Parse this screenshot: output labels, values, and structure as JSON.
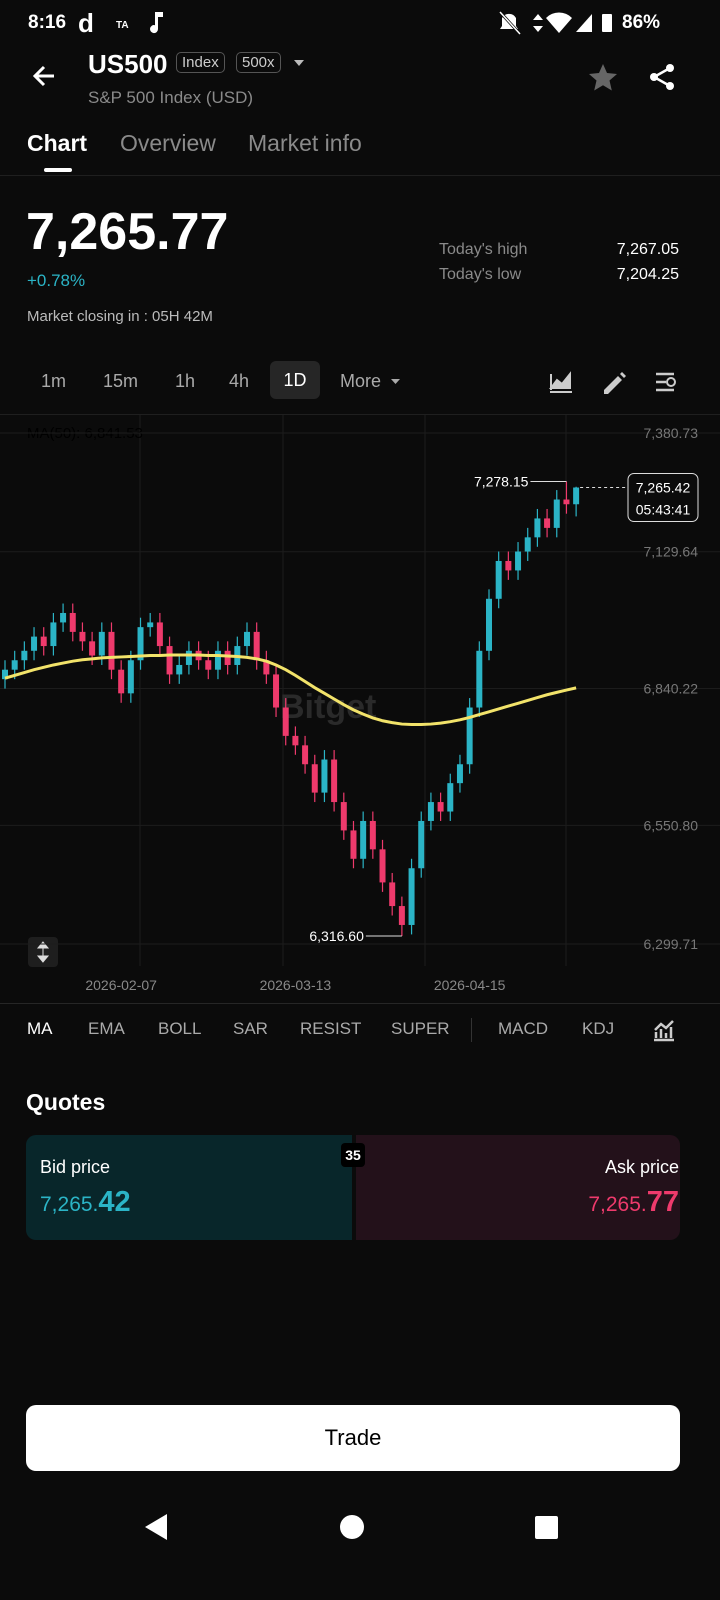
{
  "status": {
    "time": "8:16",
    "icon_d": "d",
    "icon_ta": "TA",
    "battery": "86%"
  },
  "header": {
    "symbol": "US500",
    "badges": [
      "Index",
      "500x"
    ],
    "subtitle": "S&P 500 Index (USD)"
  },
  "tabs": [
    "Chart",
    "Overview",
    "Market info"
  ],
  "price": {
    "last": "7,265.77",
    "change": "+0.78%",
    "closing": "Market closing in : 05H 42M",
    "stats": [
      {
        "label": "Today's high",
        "value": "7,267.05"
      },
      {
        "label": "Today's low",
        "value": "7,204.25"
      }
    ]
  },
  "intervals": [
    "1m",
    "15m",
    "1h",
    "4h",
    "1D",
    "More"
  ],
  "chart_data": {
    "type": "candlestick",
    "watermark": "Bitget",
    "ma_label": "MA(50): 6,841.53",
    "ma_color": "#f2e36a",
    "up_color": "#2bb4c6",
    "down_color": "#ee3a6c",
    "max_label": "7,278.15",
    "min_label": "6,316.60",
    "last_label": "7,265.42",
    "countdown": "05:43:41",
    "categories": [
      null,
      null,
      null,
      null,
      null,
      null,
      null,
      null,
      null,
      null,
      null,
      null,
      "2026-02-07",
      null,
      null,
      null,
      null,
      null,
      null,
      null,
      null,
      null,
      null,
      null,
      null,
      null,
      null,
      null,
      null,
      null,
      "2026-03-13",
      null,
      null,
      null,
      null,
      null,
      null,
      null,
      null,
      null,
      null,
      null,
      null,
      null,
      null,
      null,
      null,
      null,
      "2026-04-15",
      null,
      null,
      null,
      null,
      null,
      null,
      null,
      null,
      null,
      null,
      null
    ],
    "open": [
      6860,
      6880,
      6900,
      6920,
      6950,
      6930,
      6980,
      7000,
      6960,
      6940,
      6910,
      6960,
      6880,
      6830,
      6900,
      6970,
      6980,
      6930,
      6870,
      6890,
      6920,
      6900,
      6880,
      6920,
      6890,
      6930,
      6960,
      6900,
      6870,
      6800,
      6740,
      6720,
      6680,
      6620,
      6690,
      6600,
      6540,
      6480,
      6560,
      6500,
      6430,
      6380,
      6340,
      6460,
      6560,
      6600,
      6580,
      6640,
      6680,
      6800,
      6920,
      7030,
      7110,
      7090,
      7130,
      7160,
      7200,
      7180,
      7240,
      7230
    ],
    "high": [
      6900,
      6920,
      6940,
      6970,
      6970,
      7000,
      7020,
      7020,
      6980,
      6960,
      6980,
      6980,
      6900,
      6920,
      6990,
      7000,
      7000,
      6950,
      6910,
      6940,
      6940,
      6920,
      6940,
      6940,
      6950,
      6980,
      6980,
      6920,
      6890,
      6820,
      6760,
      6740,
      6700,
      6710,
      6710,
      6620,
      6560,
      6580,
      6580,
      6520,
      6450,
      6400,
      6480,
      6580,
      6620,
      6620,
      6660,
      6700,
      6820,
      6940,
      7050,
      7130,
      7130,
      7150,
      7180,
      7220,
      7220,
      7260,
      7278.15,
      7267.05
    ],
    "low": [
      6840,
      6860,
      6880,
      6900,
      6910,
      6910,
      6960,
      6940,
      6920,
      6890,
      6890,
      6860,
      6810,
      6810,
      6880,
      6950,
      6910,
      6850,
      6850,
      6870,
      6880,
      6860,
      6860,
      6870,
      6870,
      6910,
      6880,
      6850,
      6780,
      6720,
      6700,
      6660,
      6600,
      6600,
      6580,
      6520,
      6460,
      6460,
      6480,
      6410,
      6360,
      6316.6,
      6320,
      6440,
      6540,
      6560,
      6560,
      6620,
      6660,
      6780,
      6900,
      7010,
      7070,
      7070,
      7110,
      7140,
      7160,
      7160,
      7210,
      7204.25
    ],
    "close": [
      6880,
      6900,
      6920,
      6950,
      6930,
      6980,
      7000,
      6960,
      6940,
      6910,
      6960,
      6880,
      6830,
      6900,
      6970,
      6980,
      6930,
      6870,
      6890,
      6920,
      6900,
      6880,
      6920,
      6890,
      6930,
      6960,
      6900,
      6870,
      6800,
      6740,
      6720,
      6680,
      6620,
      6690,
      6600,
      6540,
      6480,
      6560,
      6500,
      6430,
      6380,
      6340,
      6460,
      6560,
      6600,
      6580,
      6640,
      6680,
      6800,
      6920,
      7030,
      7110,
      7090,
      7130,
      7160,
      7200,
      7180,
      7240,
      7230,
      7265.42
    ],
    "ma_values": [
      6862,
      6868,
      6874,
      6880,
      6885,
      6890,
      6894,
      6898,
      6901,
      6903,
      6905,
      6906,
      6907,
      6908,
      6909,
      6910,
      6910,
      6911,
      6911,
      6911,
      6911,
      6910,
      6910,
      6909,
      6908,
      6906,
      6903,
      6898,
      6890,
      6880,
      6868,
      6855,
      6842,
      6830,
      6818,
      6806,
      6795,
      6786,
      6778,
      6772,
      6768,
      6765,
      6764,
      6764,
      6765,
      6767,
      6770,
      6774,
      6779,
      6785,
      6791,
      6797,
      6803,
      6809,
      6815,
      6821,
      6827,
      6832,
      6837,
      6841.53
    ],
    "ylim": [
      6253.2,
      7418.8
    ],
    "yticks": [
      {
        "value": 7380.73,
        "label": "7,380.73"
      },
      {
        "value": 7129.64,
        "label": "7,129.64"
      },
      {
        "value": 6840.22,
        "label": "6,840.22"
      },
      {
        "value": 6550.8,
        "label": "6,550.80"
      },
      {
        "value": 6299.71,
        "label": "6,299.71"
      }
    ],
    "grid": true
  },
  "indicators": [
    "MA",
    "EMA",
    "BOLL",
    "SAR",
    "RESIST",
    "SUPER",
    "MACD",
    "KDJ"
  ],
  "quotes": {
    "title": "Quotes",
    "bid_label": "Bid price",
    "bid_main": "7,265.",
    "bid_emph": "42",
    "ask_label": "Ask price",
    "ask_main": "7,265.",
    "ask_emph": "77",
    "spread": "35"
  },
  "trade": "Trade"
}
